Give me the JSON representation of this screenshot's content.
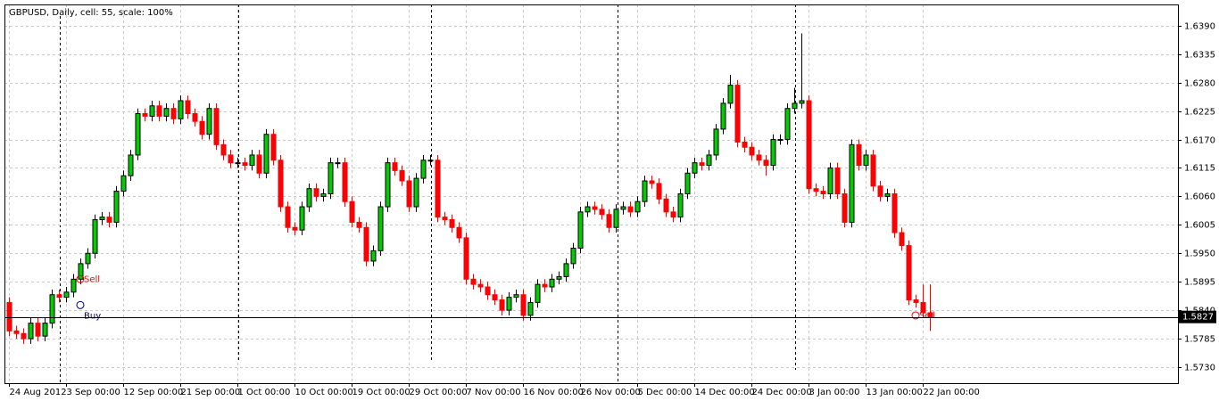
{
  "chart_data": {
    "type": "candlestick",
    "title": "GBPUSD, Daily, cell: 55, scale: 100%",
    "categories": [
      "24 Aug 2012",
      null,
      null,
      null,
      null,
      null,
      null,
      null,
      "3 Sep 00:00",
      null,
      null,
      null,
      null,
      null,
      null,
      null,
      "12 Sep 00:00",
      null,
      null,
      null,
      null,
      null,
      null,
      null,
      "21 Sep 00:00",
      null,
      null,
      null,
      null,
      null,
      null,
      null,
      "1 Oct 00:00",
      null,
      null,
      null,
      null,
      null,
      null,
      null,
      "10 Oct 00:00",
      null,
      null,
      null,
      null,
      null,
      null,
      null,
      "19 Oct 00:00",
      null,
      null,
      null,
      null,
      null,
      null,
      null,
      "29 Oct 00:00",
      null,
      null,
      null,
      null,
      null,
      null,
      null,
      "7 Nov 00:00",
      null,
      null,
      null,
      null,
      null,
      null,
      null,
      "16 Nov 00:00",
      null,
      null,
      null,
      null,
      null,
      null,
      null,
      "26 Nov 00:00",
      null,
      null,
      null,
      null,
      null,
      null,
      null,
      "5 Dec 00:00",
      null,
      null,
      null,
      null,
      null,
      null,
      null,
      "14 Dec 00:00",
      null,
      null,
      null,
      null,
      null,
      null,
      null,
      "24 Dec 00:00",
      null,
      null,
      null,
      null,
      null,
      null,
      null,
      "3 Jan 00:00",
      null,
      null,
      null,
      null,
      null,
      null,
      null,
      "13 Jan 00:00",
      null,
      null,
      null,
      null,
      null,
      null,
      null,
      "22 Jan 00:00",
      null
    ],
    "open": [
      1.5855,
      1.58,
      1.5795,
      1.5785,
      1.5815,
      1.579,
      1.5815,
      1.587,
      1.5865,
      1.5875,
      1.59,
      1.593,
      1.595,
      1.6015,
      1.602,
      1.601,
      1.607,
      1.61,
      1.614,
      1.622,
      1.6215,
      1.6235,
      1.6215,
      1.623,
      1.621,
      1.6245,
      1.622,
      1.6205,
      1.618,
      1.623,
      1.616,
      1.614,
      1.6125,
      1.6125,
      1.612,
      1.614,
      1.6105,
      1.618,
      1.613,
      1.604,
      1.6,
      1.5995,
      1.604,
      1.6075,
      1.606,
      1.6065,
      1.6125,
      1.6125,
      1.605,
      1.601,
      1.6,
      1.5935,
      1.5955,
      1.604,
      1.6125,
      1.611,
      1.609,
      1.604,
      1.6095,
      1.613,
      1.613,
      1.602,
      1.6015,
      1.6,
      1.598,
      1.59,
      1.589,
      1.5885,
      1.587,
      1.586,
      1.584,
      1.5865,
      1.587,
      1.583,
      1.5855,
      1.589,
      1.5885,
      1.59,
      1.5905,
      1.593,
      1.596,
      1.603,
      1.604,
      1.6035,
      1.6025,
      1.6,
      1.6035,
      1.604,
      1.603,
      1.605,
      1.609,
      1.6085,
      1.6055,
      1.603,
      1.602,
      1.6065,
      1.6105,
      1.6125,
      1.612,
      1.614,
      1.619,
      1.624,
      1.6275,
      1.6165,
      1.6155,
      1.614,
      1.613,
      1.612,
      1.617,
      1.617,
      1.623,
      1.624,
      1.6245,
      1.6075,
      1.607,
      1.6065,
      1.6115,
      1.6065,
      1.601,
      1.616,
      1.612,
      1.614,
      1.608,
      1.606,
      1.6065,
      1.599,
      1.5965,
      1.586,
      1.5855,
      1.5835
    ],
    "high": [
      1.5865,
      1.581,
      1.5805,
      1.5825,
      1.5825,
      1.5825,
      1.588,
      1.588,
      1.5885,
      1.591,
      1.594,
      1.596,
      1.6025,
      1.603,
      1.603,
      1.608,
      1.611,
      1.615,
      1.623,
      1.623,
      1.6245,
      1.6245,
      1.624,
      1.624,
      1.6255,
      1.6255,
      1.623,
      1.6215,
      1.624,
      1.624,
      1.617,
      1.615,
      1.6135,
      1.6135,
      1.615,
      1.615,
      1.619,
      1.619,
      1.614,
      1.605,
      1.601,
      1.605,
      1.6085,
      1.6085,
      1.6075,
      1.6135,
      1.6135,
      1.6135,
      1.606,
      1.602,
      1.601,
      1.5965,
      1.605,
      1.6135,
      1.6135,
      1.612,
      1.61,
      1.6105,
      1.614,
      1.614,
      1.614,
      1.603,
      1.6025,
      1.601,
      1.599,
      1.591,
      1.59,
      1.5895,
      1.588,
      1.587,
      1.5875,
      1.588,
      1.588,
      1.5865,
      1.59,
      1.59,
      1.591,
      1.5915,
      1.594,
      1.597,
      1.604,
      1.605,
      1.605,
      1.6045,
      1.6035,
      1.6045,
      1.605,
      1.605,
      1.606,
      1.61,
      1.61,
      1.6095,
      1.6065,
      1.604,
      1.6075,
      1.6115,
      1.6135,
      1.6135,
      1.615,
      1.62,
      1.625,
      1.6295,
      1.6285,
      1.6175,
      1.6165,
      1.615,
      1.614,
      1.618,
      1.618,
      1.624,
      1.627,
      1.6375,
      1.6255,
      1.6085,
      1.608,
      1.6125,
      1.6125,
      1.6075,
      1.617,
      1.617,
      1.615,
      1.615,
      1.609,
      1.6075,
      1.6075,
      1.6,
      1.5975,
      1.587,
      1.589,
      1.589
    ],
    "low": [
      1.579,
      1.5785,
      1.5775,
      1.5775,
      1.578,
      1.578,
      1.5805,
      1.5855,
      1.5855,
      1.5865,
      1.589,
      1.592,
      1.594,
      1.6005,
      1.6,
      1.6,
      1.606,
      1.609,
      1.613,
      1.6205,
      1.6205,
      1.6205,
      1.6205,
      1.62,
      1.62,
      1.621,
      1.6195,
      1.617,
      1.617,
      1.615,
      1.613,
      1.6115,
      1.6115,
      1.611,
      1.611,
      1.6095,
      1.6095,
      1.612,
      1.603,
      1.599,
      1.5985,
      1.5985,
      1.603,
      1.605,
      1.605,
      1.6055,
      1.6115,
      1.604,
      1.6,
      1.599,
      1.5925,
      1.5925,
      1.5945,
      1.603,
      1.61,
      1.608,
      1.603,
      1.603,
      1.6085,
      1.612,
      1.601,
      1.6005,
      1.599,
      1.597,
      1.589,
      1.588,
      1.5875,
      1.586,
      1.585,
      1.583,
      1.583,
      1.5855,
      1.582,
      1.582,
      1.5845,
      1.5875,
      1.5875,
      1.589,
      1.5895,
      1.592,
      1.595,
      1.602,
      1.6025,
      1.6015,
      1.599,
      1.599,
      1.6025,
      1.602,
      1.602,
      1.604,
      1.6075,
      1.6045,
      1.602,
      1.601,
      1.601,
      1.6055,
      1.6095,
      1.611,
      1.611,
      1.613,
      1.618,
      1.623,
      1.6155,
      1.6145,
      1.613,
      1.612,
      1.61,
      1.611,
      1.616,
      1.616,
      1.622,
      1.623,
      1.6065,
      1.606,
      1.6055,
      1.6055,
      1.6055,
      1.6,
      1.6,
      1.611,
      1.611,
      1.607,
      1.605,
      1.605,
      1.598,
      1.5955,
      1.585,
      1.5845,
      1.5825,
      1.58
    ],
    "close": [
      1.58,
      1.5795,
      1.5785,
      1.5815,
      1.579,
      1.5815,
      1.587,
      1.5865,
      1.5875,
      1.59,
      1.593,
      1.595,
      1.6015,
      1.602,
      1.601,
      1.607,
      1.61,
      1.614,
      1.622,
      1.6215,
      1.6235,
      1.6215,
      1.623,
      1.621,
      1.6245,
      1.622,
      1.6205,
      1.618,
      1.623,
      1.616,
      1.614,
      1.6125,
      1.6125,
      1.612,
      1.614,
      1.6105,
      1.618,
      1.613,
      1.604,
      1.6,
      1.5995,
      1.604,
      1.6075,
      1.606,
      1.6065,
      1.6125,
      1.6125,
      1.605,
      1.601,
      1.6,
      1.5935,
      1.5955,
      1.604,
      1.6125,
      1.611,
      1.609,
      1.604,
      1.6095,
      1.613,
      1.613,
      1.602,
      1.6015,
      1.6,
      1.598,
      1.59,
      1.589,
      1.5885,
      1.587,
      1.586,
      1.584,
      1.5865,
      1.587,
      1.583,
      1.5855,
      1.589,
      1.5885,
      1.59,
      1.5905,
      1.593,
      1.596,
      1.603,
      1.604,
      1.6035,
      1.6025,
      1.6,
      1.6035,
      1.604,
      1.603,
      1.605,
      1.609,
      1.6085,
      1.6055,
      1.603,
      1.602,
      1.6065,
      1.6105,
      1.6125,
      1.612,
      1.614,
      1.619,
      1.624,
      1.6275,
      1.6165,
      1.6155,
      1.614,
      1.613,
      1.612,
      1.617,
      1.617,
      1.623,
      1.624,
      1.6245,
      1.6075,
      1.607,
      1.6065,
      1.6115,
      1.6065,
      1.601,
      1.616,
      1.612,
      1.614,
      1.608,
      1.606,
      1.6065,
      1.599,
      1.5965,
      1.586,
      1.5855,
      1.5835,
      1.5827
    ],
    "up_color": "#00cc00",
    "down_color": "#ff0000",
    "ylim": [
      1.5699,
      1.6431
    ],
    "yticks": [
      {
        "value": 1.573,
        "label": "1.5730"
      },
      1.5785,
      {
        "value": 1.584,
        "label": "1.5840"
      },
      1.5895,
      {
        "value": 1.595,
        "label": "1.5950"
      },
      1.6005,
      {
        "value": 1.606,
        "label": "1.6060"
      },
      1.6115,
      {
        "value": 1.617,
        "label": "1.6170"
      },
      1.6225,
      {
        "value": 1.628,
        "label": "1.6280"
      },
      1.6335,
      {
        "value": 1.639,
        "label": "1.6390"
      }
    ],
    "grid": true,
    "current_price": 1.5827,
    "annotations": [
      {
        "text": "Buy",
        "x": 10,
        "y": 1.585,
        "color": "#000080"
      },
      {
        "text": "Sell",
        "x": 10,
        "y": 1.59,
        "color": "#ff0000"
      },
      {
        "text": "Sell",
        "x": 127,
        "y": 1.583,
        "color": "#ff0000"
      }
    ]
  }
}
